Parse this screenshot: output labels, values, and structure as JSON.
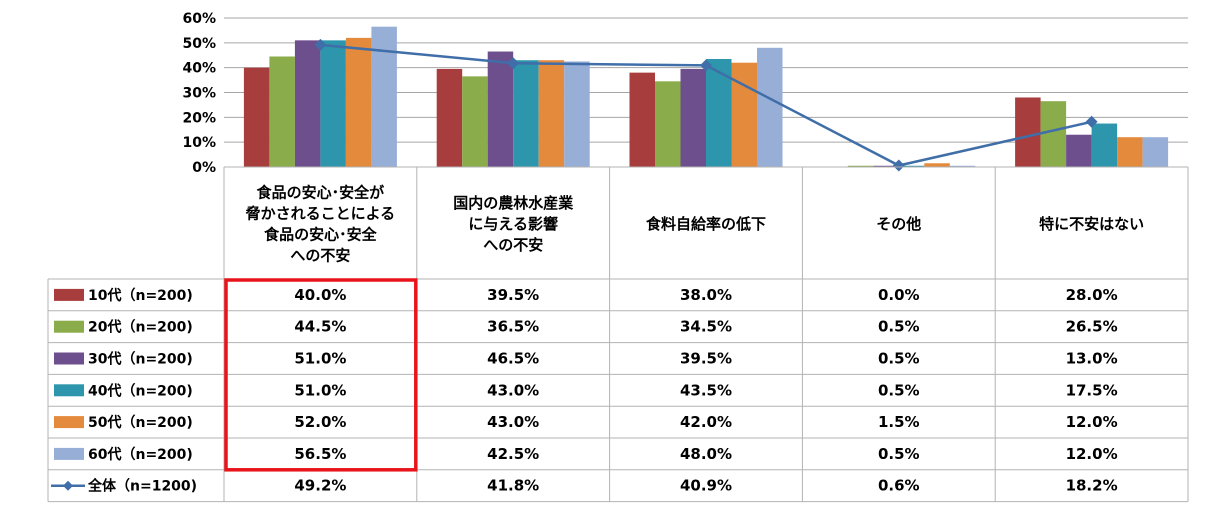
{
  "chart_data": {
    "type": "bar",
    "categories": [
      [
        "食品の安心･安全が",
        "脅かされることによる",
        "食品の安心･安全",
        "への不安"
      ],
      [
        "国内の農林水産業",
        "に与える影響",
        "への不安"
      ],
      [
        "食料自給率の低下"
      ],
      [
        "その他"
      ],
      [
        "特に不安はない"
      ]
    ],
    "y_ticks": [
      "0%",
      "10%",
      "20%",
      "30%",
      "40%",
      "50%",
      "60%"
    ],
    "ylim": [
      0,
      60
    ],
    "grid": true,
    "series": [
      {
        "name": "10代（n=200)",
        "color": "#a83d3d",
        "values": [
          40.0,
          39.5,
          38.0,
          0.0,
          28.0
        ],
        "labels": [
          "40.0%",
          "39.5%",
          "38.0%",
          "0.0%",
          "28.0%"
        ]
      },
      {
        "name": "20代（n=200)",
        "color": "#8aac4a",
        "values": [
          44.5,
          36.5,
          34.5,
          0.5,
          26.5
        ],
        "labels": [
          "44.5%",
          "36.5%",
          "34.5%",
          "0.5%",
          "26.5%"
        ]
      },
      {
        "name": "30代（n=200)",
        "color": "#6e4f8e",
        "values": [
          51.0,
          46.5,
          39.5,
          0.5,
          13.0
        ],
        "labels": [
          "51.0%",
          "46.5%",
          "39.5%",
          "0.5%",
          "13.0%"
        ]
      },
      {
        "name": "40代（n=200)",
        "color": "#2d96ad",
        "values": [
          51.0,
          43.0,
          43.5,
          0.5,
          17.5
        ],
        "labels": [
          "51.0%",
          "43.0%",
          "43.5%",
          "0.5%",
          "17.5%"
        ]
      },
      {
        "name": "50代（n=200)",
        "color": "#e48a3c",
        "values": [
          52.0,
          43.0,
          42.0,
          1.5,
          12.0
        ],
        "labels": [
          "52.0%",
          "43.0%",
          "42.0%",
          "1.5%",
          "12.0%"
        ]
      },
      {
        "name": "60代（n=200)",
        "color": "#97aed6",
        "values": [
          56.5,
          42.5,
          48.0,
          0.5,
          12.0
        ],
        "labels": [
          "56.5%",
          "42.5%",
          "48.0%",
          "0.5%",
          "12.0%"
        ]
      }
    ],
    "line_series": {
      "name": "全体（n=1200)",
      "color": "#3f6ea8",
      "marker": "diamond",
      "values": [
        49.2,
        41.8,
        40.9,
        0.6,
        18.2
      ],
      "labels": [
        "49.2%",
        "41.8%",
        "40.9%",
        "0.6%",
        "18.2%"
      ]
    },
    "highlight": {
      "column": 0,
      "color": "#e8141b"
    }
  }
}
